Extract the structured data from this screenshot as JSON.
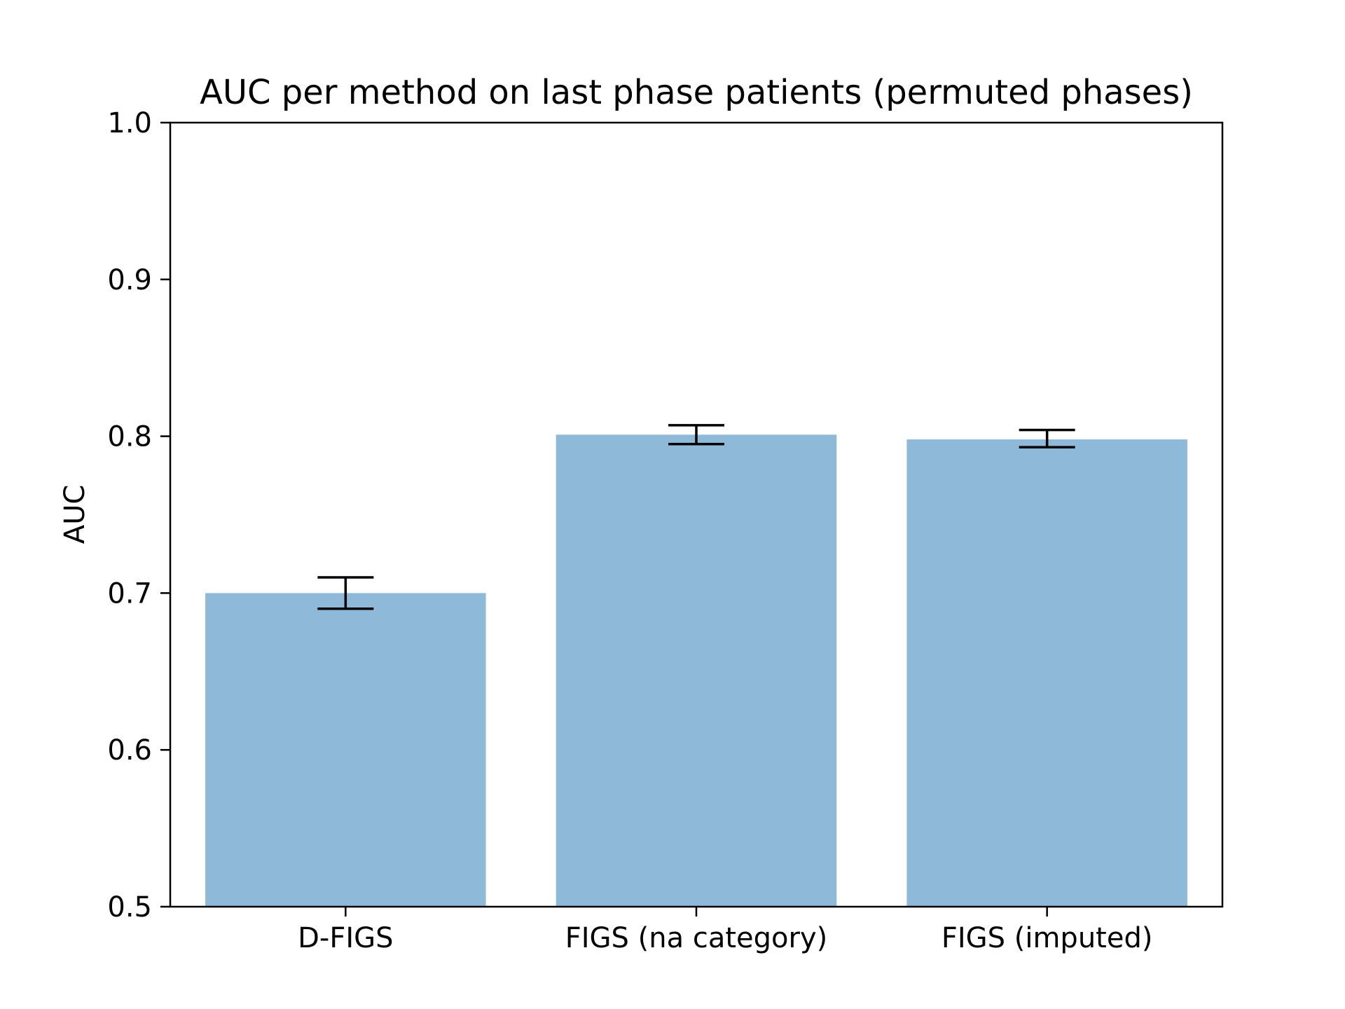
{
  "chart_data": {
    "type": "bar",
    "title": "AUC per method on last phase patients (permuted phases)",
    "xlabel": "",
    "ylabel": "AUC",
    "ylim": [
      0.5,
      1.0
    ],
    "yticks": [
      "0.5",
      "0.6",
      "0.7",
      "0.8",
      "0.9",
      "1.0"
    ],
    "categories": [
      "D-FIGS",
      "FIGS (na category)",
      "FIGS (imputed)"
    ],
    "values": [
      0.7,
      0.801,
      0.798
    ],
    "error_bars": [
      {
        "low": 0.69,
        "high": 0.71
      },
      {
        "low": 0.795,
        "high": 0.807
      },
      {
        "low": 0.793,
        "high": 0.804
      }
    ],
    "bar_color": "#8fb9d9",
    "error_color": "#000000",
    "grid": false,
    "legend": "none"
  }
}
